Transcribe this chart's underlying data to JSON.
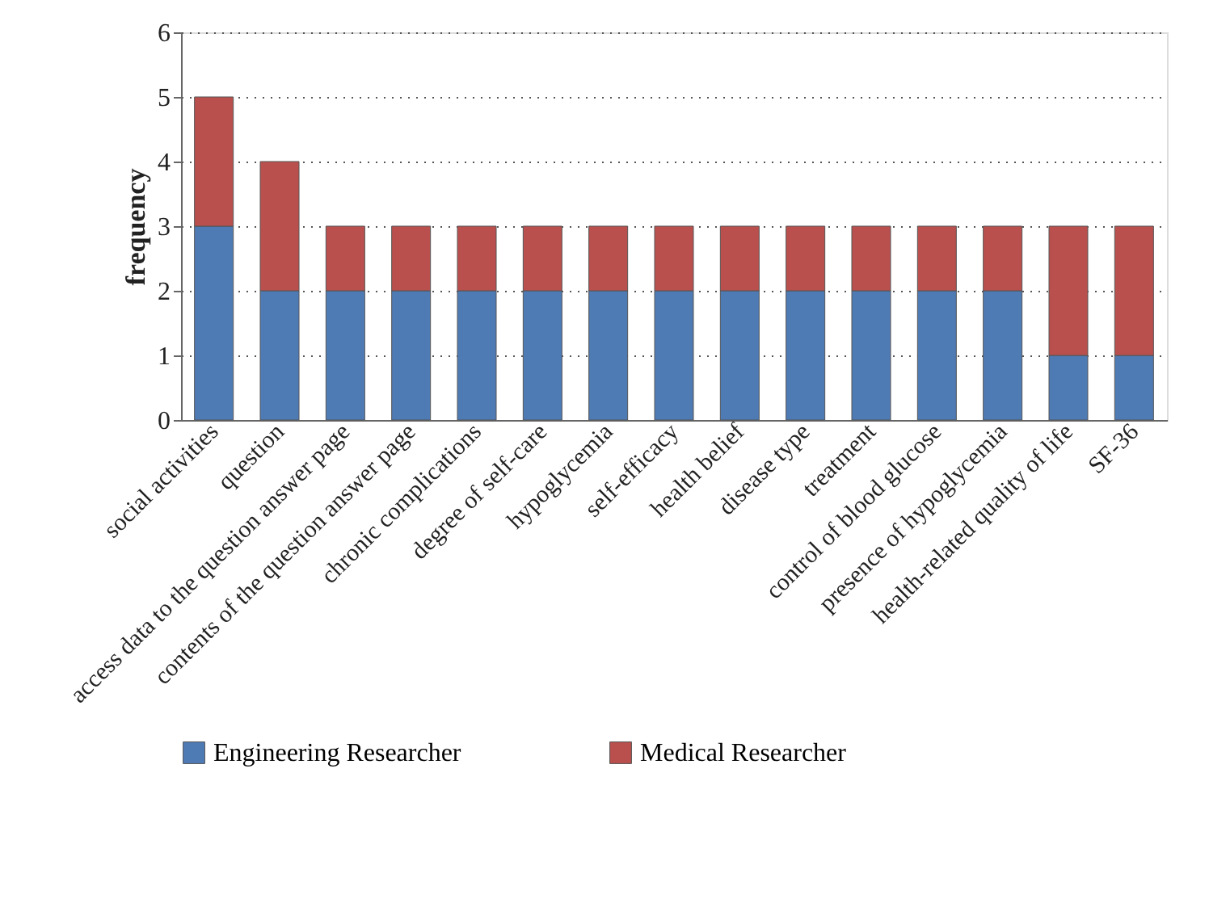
{
  "chart_data": {
    "type": "bar",
    "stacked": true,
    "ylabel": "frequency",
    "categories": [
      "social activities",
      "question",
      "access data to the question answer page",
      "contents of the question answer page",
      "chronic complications",
      "degree of self-care",
      "hypoglycemia",
      "self-efficacy",
      "health belief",
      "disease type",
      "treatment",
      "control of blood glucose",
      "presence of hypoglycemia",
      "health-related quality of life",
      "SF-36"
    ],
    "series": [
      {
        "name": "Engineering Researcher",
        "color": "#4f7bb5",
        "values": [
          3,
          2,
          2,
          2,
          2,
          2,
          2,
          2,
          2,
          2,
          2,
          2,
          2,
          1,
          1
        ]
      },
      {
        "name": "Medical Researcher",
        "color": "#b9504e",
        "values": [
          2,
          2,
          1,
          1,
          1,
          1,
          1,
          1,
          1,
          1,
          1,
          1,
          1,
          2,
          2
        ]
      }
    ],
    "ylim": [
      0,
      6
    ],
    "yticks": [
      0,
      1,
      2,
      3,
      4,
      5,
      6
    ],
    "grid": "y",
    "legend": "bottom"
  }
}
